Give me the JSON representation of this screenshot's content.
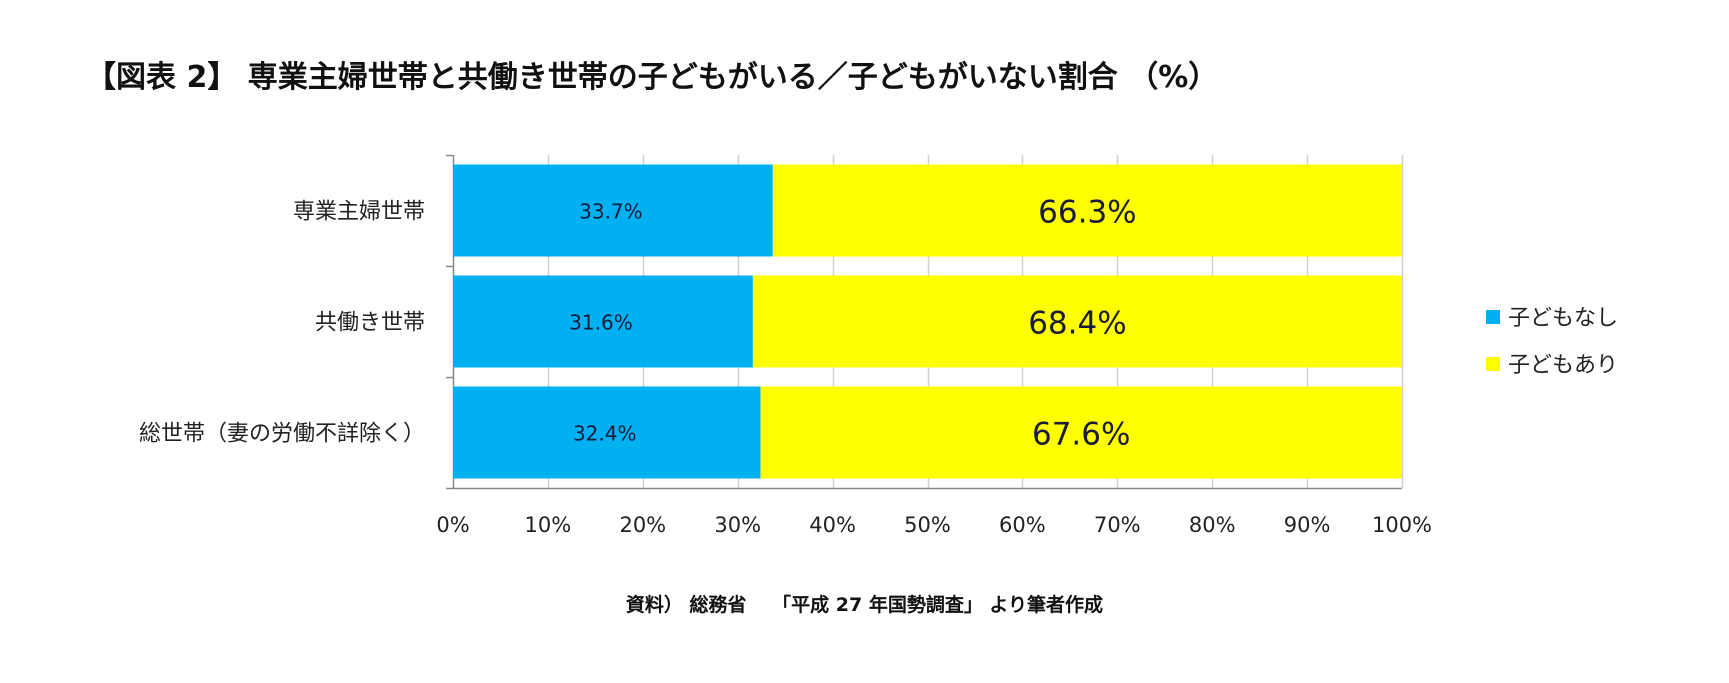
{
  "title": "【図表 2】 専業主婦世帯と共働き世帯の子どもがいる／子どもがいない割合 （%）",
  "source": "資料） 総務省　 「平成 27 年国勢調査」 より筆者作成",
  "chart_data": {
    "type": "bar",
    "orientation": "horizontal",
    "stacked": true,
    "categories": [
      "専業主婦世帯",
      "共働き世帯",
      "総世帯（妻の労働不詳除く）"
    ],
    "series": [
      {
        "name": "子どもなし",
        "color": "#00b0f0",
        "values": [
          33.7,
          31.6,
          32.4
        ],
        "labels": [
          "33.7%",
          "31.6%",
          "32.4%"
        ]
      },
      {
        "name": "子どもあり",
        "color": "#ffff00",
        "values": [
          66.3,
          68.4,
          67.6
        ],
        "labels": [
          "66.3%",
          "68.4%",
          "67.6%"
        ]
      }
    ],
    "xlim": [
      0,
      100
    ],
    "xticks": [
      0,
      10,
      20,
      30,
      40,
      50,
      60,
      70,
      80,
      90,
      100
    ],
    "xtick_labels": [
      "0%",
      "10%",
      "20%",
      "30%",
      "40%",
      "50%",
      "60%",
      "70%",
      "80%",
      "90%",
      "100%"
    ],
    "grid": true,
    "gridline_color": "#d0d0d0",
    "legend_position": "right"
  }
}
